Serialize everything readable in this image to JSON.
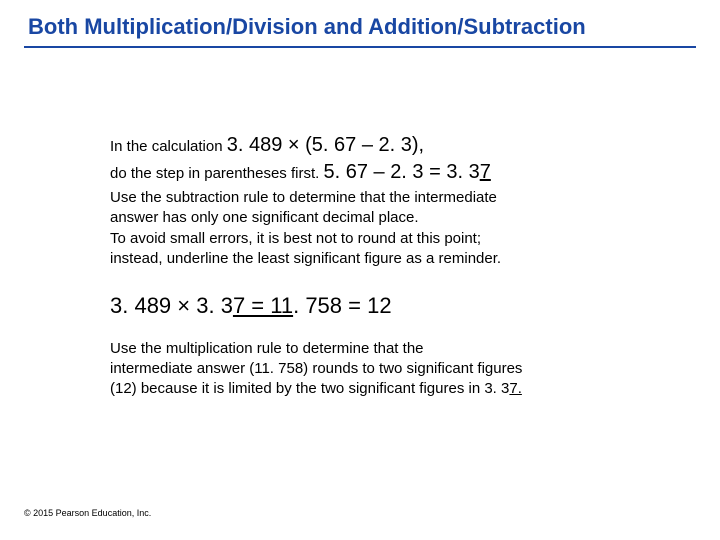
{
  "title": "Both Multiplication/Division and Addition/Subtraction",
  "line1_small": "In the calculation ",
  "line1_big": "3. 489 × (5. 67 – 2. 3),",
  "line2_small": "do the step in parentheses first. ",
  "line2_big_a": "5. 67 – 2. 3 = 3. 3",
  "line2_big_b": "7",
  "para1_a": "Use the subtraction rule to determine that the intermediate",
  "para1_b": "answer has only one significant decimal place.",
  "para1_c": "To avoid small errors, it is best not to round at this point;",
  "para1_d": "instead, underline the least significant figure as a reminder.",
  "eq3_a": "3. 489 × 3. 3",
  "eq3_b": "7 = 11",
  "eq3_c": ". 758 = 12",
  "para2_a": "Use the multiplication rule to determine that the",
  "para2_b": "intermediate answer (11. 758) rounds to two significant figures",
  "para2_c_a": "(12) because it is limited by the two significant figures in 3. 3",
  "para2_c_b": "7.",
  "copyright": "© 2015 Pearson Education, Inc.",
  "colors": {
    "title": "#1947a3",
    "rule": "#1947a3",
    "text": "#000000",
    "background": "#ffffff"
  }
}
